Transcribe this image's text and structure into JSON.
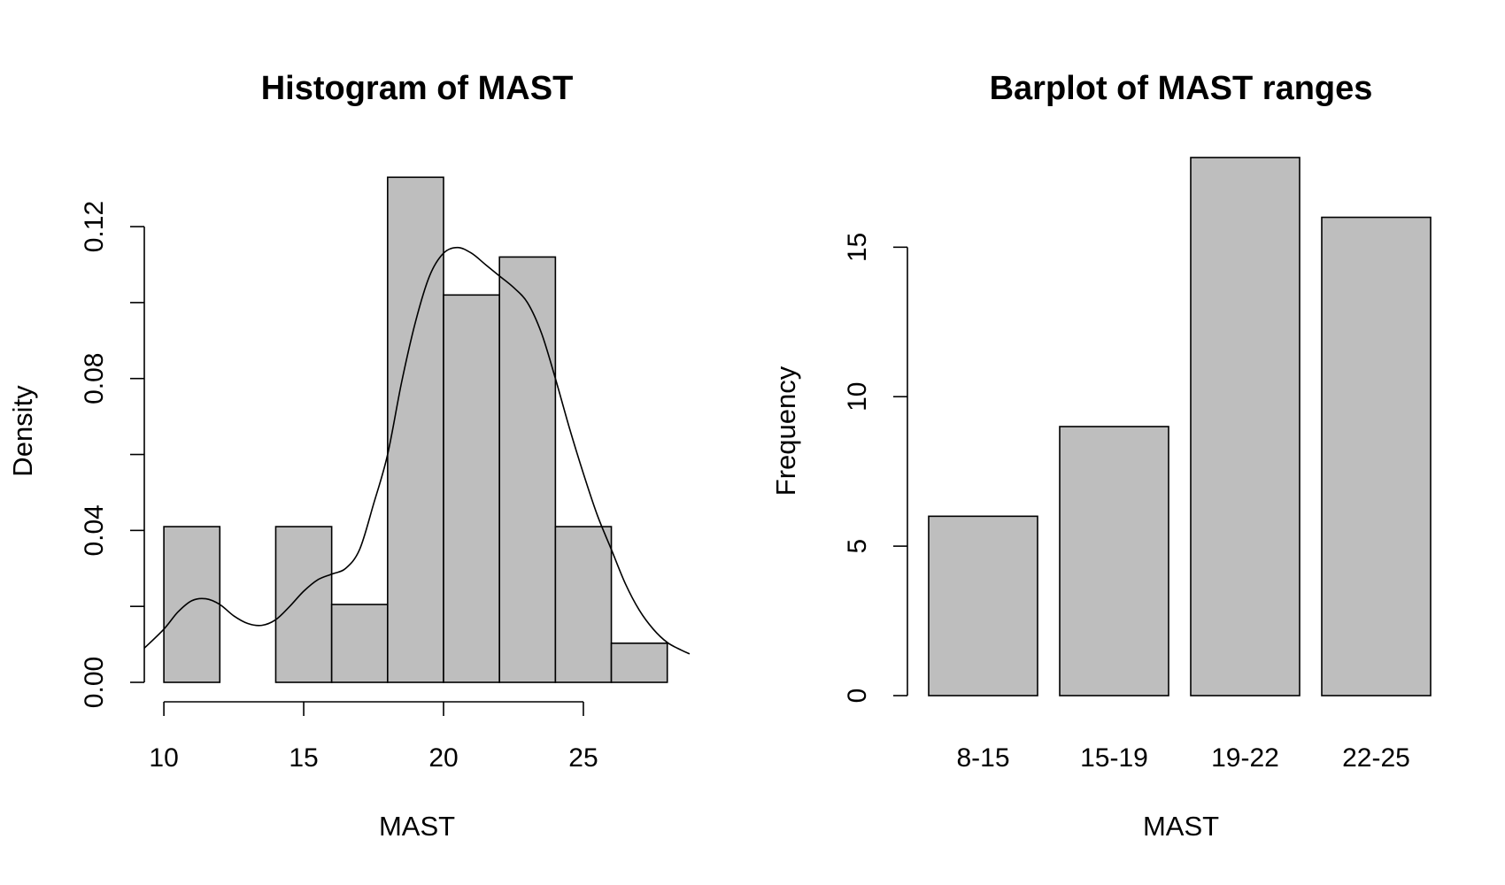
{
  "chart_data": [
    {
      "type": "histogram",
      "title": "Histogram of MAST",
      "xlabel": "MAST",
      "ylabel": "Density",
      "bins": [
        {
          "start": 10,
          "end": 12,
          "density": 0.041
        },
        {
          "start": 12,
          "end": 14,
          "density": 0.0
        },
        {
          "start": 14,
          "end": 16,
          "density": 0.041
        },
        {
          "start": 16,
          "end": 18,
          "density": 0.0205
        },
        {
          "start": 18,
          "end": 20,
          "density": 0.133
        },
        {
          "start": 20,
          "end": 22,
          "density": 0.102
        },
        {
          "start": 22,
          "end": 24,
          "density": 0.112
        },
        {
          "start": 24,
          "end": 26,
          "density": 0.041
        },
        {
          "start": 26,
          "end": 28,
          "density": 0.0103
        }
      ],
      "density_curve": {
        "x": [
          9.3,
          10.0,
          10.5,
          11.0,
          11.5,
          12.0,
          12.5,
          13.0,
          13.5,
          14.0,
          14.5,
          15.0,
          15.5,
          16.0,
          16.5,
          17.0,
          17.5,
          18.0,
          18.5,
          19.0,
          19.5,
          20.0,
          20.5,
          21.0,
          21.5,
          22.0,
          22.5,
          23.0,
          23.5,
          24.0,
          24.5,
          25.0,
          25.5,
          26.0,
          26.5,
          27.0,
          27.5,
          28.0,
          28.5,
          28.8
        ],
        "y": [
          0.009,
          0.014,
          0.0185,
          0.0215,
          0.022,
          0.0205,
          0.0175,
          0.0155,
          0.015,
          0.0165,
          0.02,
          0.024,
          0.027,
          0.0285,
          0.03,
          0.035,
          0.047,
          0.06,
          0.079,
          0.095,
          0.107,
          0.113,
          0.1145,
          0.113,
          0.11,
          0.107,
          0.104,
          0.1,
          0.092,
          0.08,
          0.067,
          0.055,
          0.044,
          0.035,
          0.026,
          0.019,
          0.014,
          0.0105,
          0.0085,
          0.0075
        ]
      },
      "xlim": [
        9.3,
        28.8
      ],
      "ylim": [
        0,
        0.134
      ],
      "x_ticks": [
        10,
        15,
        20,
        25
      ],
      "y_ticks": [
        0.0,
        0.02,
        0.04,
        0.06,
        0.08,
        0.1,
        0.12
      ],
      "x_tick_labels": [
        "10",
        "15",
        "20",
        "25"
      ],
      "y_tick_labels": [
        "0.00",
        "",
        "0.04",
        "",
        "0.08",
        "",
        "0.12"
      ],
      "colors": {
        "bar_fill": "#bebebe",
        "stroke": "#000000"
      }
    },
    {
      "type": "bar",
      "title": "Barplot of MAST ranges",
      "xlabel": "MAST",
      "ylabel": "Frequency",
      "categories": [
        "8-15",
        "15-19",
        "19-22",
        "22-25"
      ],
      "values": [
        6,
        9,
        18,
        16
      ],
      "ylim": [
        0,
        18
      ],
      "y_ticks": [
        0,
        5,
        10,
        15
      ],
      "y_tick_labels": [
        "0",
        "5",
        "10",
        "15"
      ],
      "colors": {
        "bar_fill": "#bebebe",
        "stroke": "#000000"
      }
    }
  ]
}
